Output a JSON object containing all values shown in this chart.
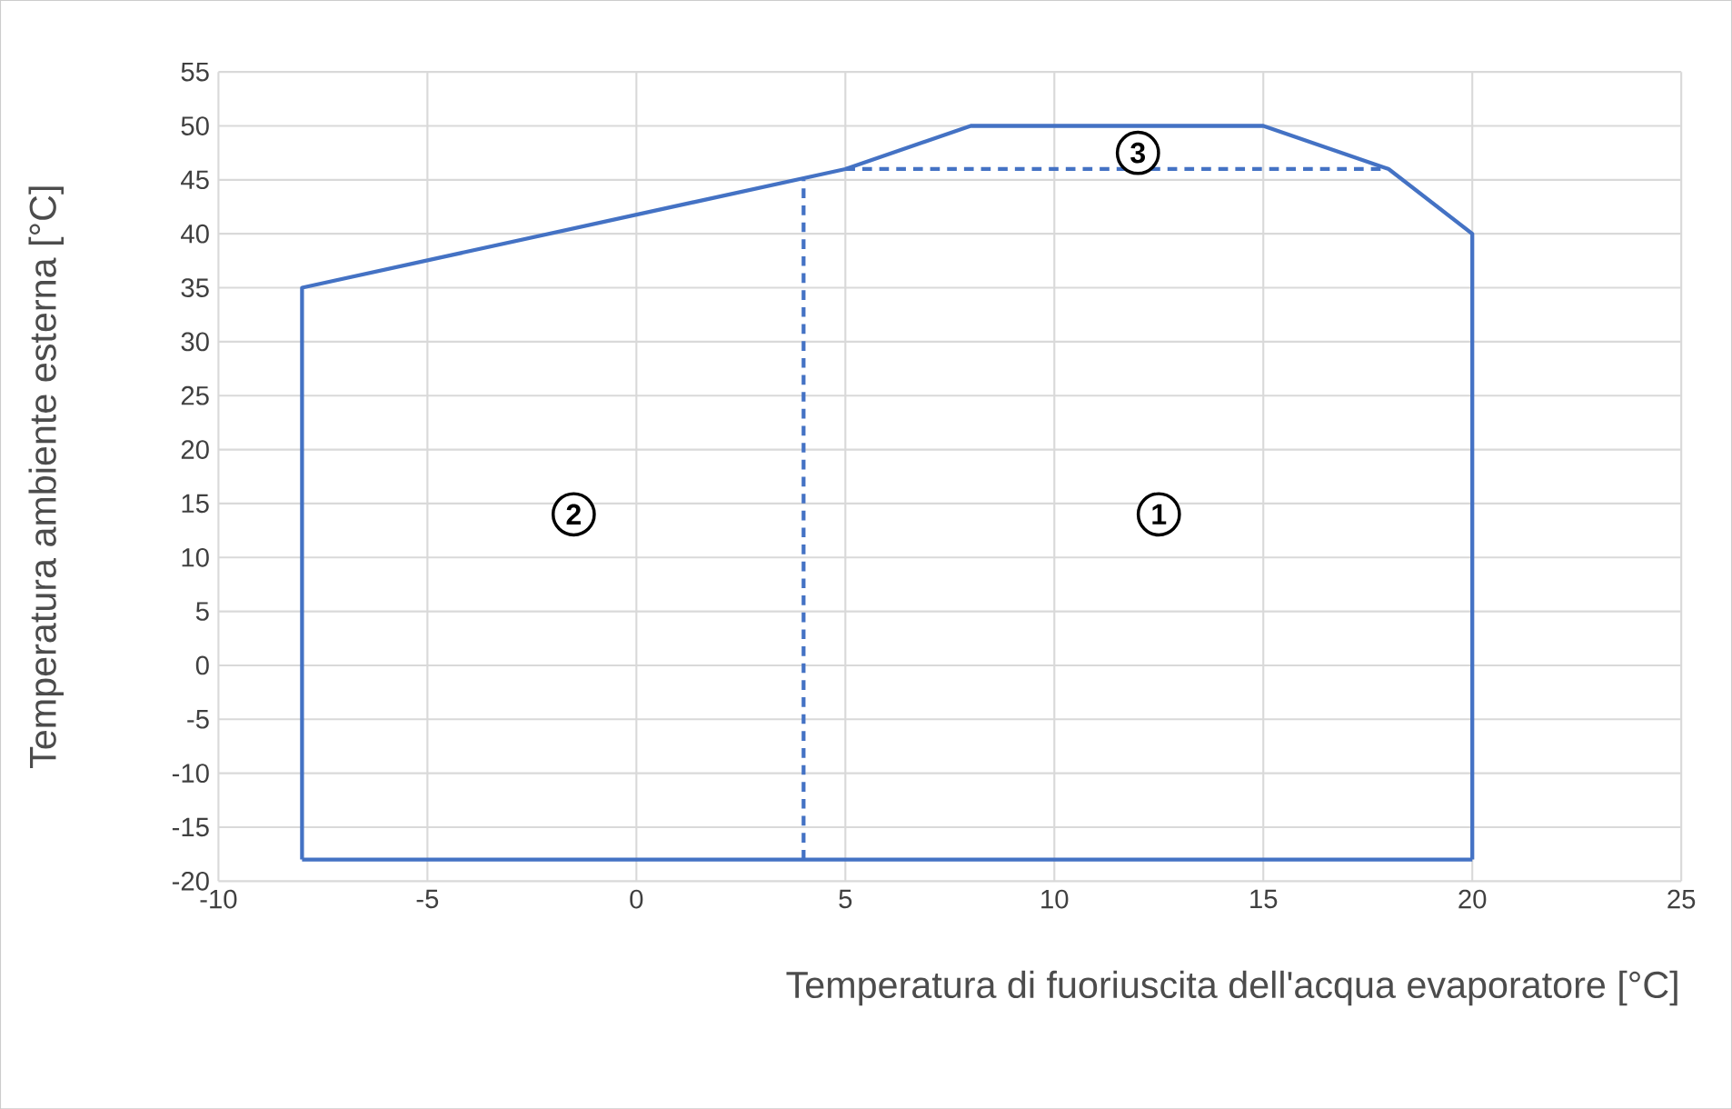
{
  "chart_data": {
    "type": "line",
    "xlabel": "Temperatura di fuoriuscita dell'acqua evaporatore [°C]",
    "ylabel": "Temperatura ambiente esterna [°C]",
    "xlim": [
      -10,
      25
    ],
    "xticks": [
      -10,
      -5,
      0,
      5,
      10,
      15,
      20,
      25
    ],
    "ylim": [
      -20,
      55
    ],
    "yticks": [
      -20,
      -15,
      -10,
      -5,
      0,
      5,
      10,
      15,
      20,
      25,
      30,
      35,
      40,
      45,
      50,
      55
    ],
    "grid": true,
    "marker": "none",
    "series": [
      {
        "color": "#4472c4",
        "line_style": "dashed",
        "x": [
          4,
          4,
          4.5,
          5,
          18
        ],
        "values": [
          -18,
          45,
          null,
          46,
          46
        ]
      },
      {
        "color": "#4472c4",
        "line_style": "solid",
        "x": [
          -8,
          -8,
          5,
          8,
          15,
          18,
          20,
          20
        ],
        "values": [
          -18,
          35,
          46,
          50,
          50,
          46,
          40,
          -18
        ]
      },
      {
        "color": "#4472c4",
        "line_style": "solid",
        "x": [
          -8,
          20
        ],
        "values": [
          -18,
          -18
        ]
      }
    ],
    "annotations": [
      {
        "text": "1",
        "x": 12.5,
        "y": 14
      },
      {
        "text": "2",
        "x": -1.5,
        "y": 14
      },
      {
        "text": "3",
        "x": 12,
        "y": 47.5
      }
    ]
  }
}
